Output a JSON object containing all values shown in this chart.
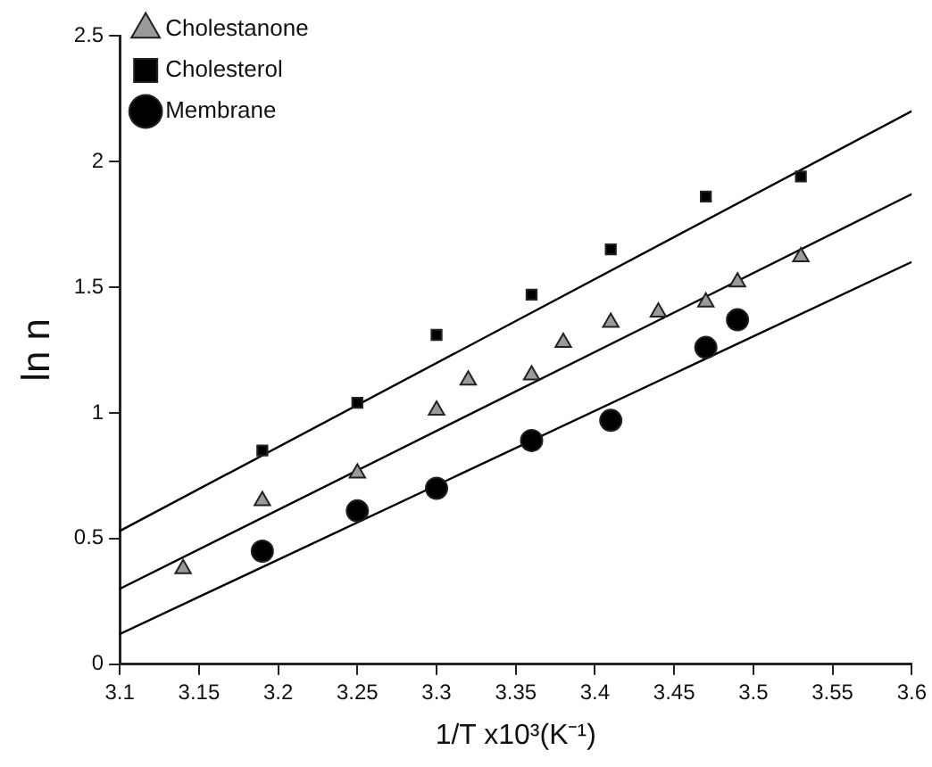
{
  "chart_data": {
    "type": "scatter",
    "xlabel": "1/T x10³(K⁻¹)",
    "ylabel": "ln n",
    "xlim": [
      3.1,
      3.6
    ],
    "xticks": [
      3.1,
      3.15,
      3.2,
      3.25,
      3.3,
      3.35,
      3.4,
      3.45,
      3.5,
      3.55,
      3.6
    ],
    "ylim": [
      0,
      2.5
    ],
    "yticks": [
      0,
      0.5,
      1,
      1.5,
      2,
      2.5
    ],
    "grid": false,
    "legend": "top left",
    "series": [
      {
        "name": "Cholestanone",
        "color": "#9a9a9a",
        "marker": "triangle",
        "x": [
          3.14,
          3.19,
          3.25,
          3.3,
          3.32,
          3.36,
          3.38,
          3.41,
          3.44,
          3.47,
          3.49,
          3.53
        ],
        "values": [
          0.38,
          0.65,
          0.76,
          1.01,
          1.13,
          1.15,
          1.28,
          1.36,
          1.4,
          1.44,
          1.52,
          1.62
        ]
      },
      {
        "name": "Cholesterol",
        "color": "#000000",
        "marker": "square",
        "x": [
          3.19,
          3.25,
          3.3,
          3.36,
          3.41,
          3.47,
          3.53
        ],
        "values": [
          0.85,
          1.04,
          1.31,
          1.47,
          1.65,
          1.86,
          1.94
        ]
      },
      {
        "name": "Membrane",
        "color": "#000000",
        "marker": "circle",
        "x": [
          3.19,
          3.25,
          3.3,
          3.36,
          3.41,
          3.47,
          3.49
        ],
        "values": [
          0.45,
          0.61,
          0.7,
          0.89,
          0.97,
          1.26,
          1.37
        ]
      },
      {
        "type": "line",
        "color": "#000000",
        "marker": "none",
        "x": [
          3.1,
          3.6
        ],
        "values": [
          0.53,
          2.2
        ]
      },
      {
        "type": "line",
        "color": "#000000",
        "marker": "none",
        "x": [
          3.1,
          3.6
        ],
        "values": [
          0.3,
          1.87
        ]
      },
      {
        "type": "line",
        "color": "#000000",
        "marker": "none",
        "x": [
          3.1,
          3.6
        ],
        "values": [
          0.12,
          1.6
        ]
      }
    ]
  }
}
